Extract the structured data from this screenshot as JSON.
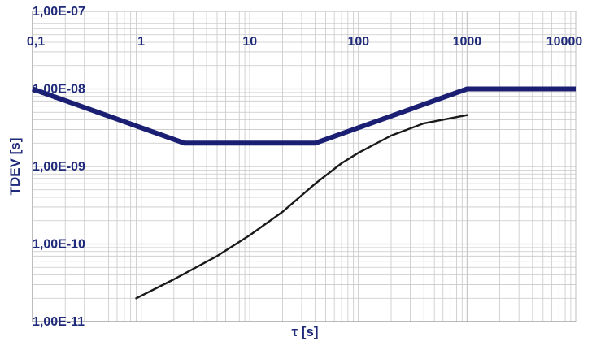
{
  "colors": {
    "background": "#ffffff",
    "grid": "#c8c8c8",
    "axis_text": "#1f2a7a",
    "mask_line": "#1b1f73",
    "measured_line": "#1a1a1a"
  },
  "chart_data": {
    "type": "line",
    "x_scale": "log",
    "y_scale": "log",
    "xlim": [
      0.1,
      10000
    ],
    "ylim": [
      1e-11,
      1e-07
    ],
    "x_ticks": [
      {
        "value": 0.1,
        "label": "0,1"
      },
      {
        "value": 1,
        "label": "1"
      },
      {
        "value": 10,
        "label": "10"
      },
      {
        "value": 100,
        "label": "100"
      },
      {
        "value": 1000,
        "label": "1000"
      },
      {
        "value": 10000,
        "label": "10000"
      }
    ],
    "y_ticks": [
      {
        "value": 1e-11,
        "label": "1,00E-11"
      },
      {
        "value": 1e-10,
        "label": "1,00E-10"
      },
      {
        "value": 1e-09,
        "label": "1,00E-09"
      },
      {
        "value": 1e-08,
        "label": "1,00E-08"
      },
      {
        "value": 1e-07,
        "label": "1,00E-07"
      }
    ],
    "xlabel": "τ [s]",
    "ylabel": "TDEV [s]",
    "x_axis_position": "top",
    "grid": true,
    "legend": "none",
    "series": [
      {
        "role": "mask",
        "color": "#1b1f73",
        "x": [
          0.1,
          2.5,
          40,
          1000,
          10000
        ],
        "y": [
          1e-08,
          2e-09,
          2e-09,
          1e-08,
          1e-08
        ]
      },
      {
        "role": "measurement",
        "color": "#1a1a1a",
        "x": [
          0.9,
          2,
          5,
          10,
          20,
          40,
          70,
          100,
          200,
          400,
          1000
        ],
        "y": [
          2e-11,
          3.5e-11,
          7e-11,
          1.3e-10,
          2.6e-10,
          6e-10,
          1.1e-09,
          1.5e-09,
          2.5e-09,
          3.6e-09,
          4.6e-09
        ]
      }
    ]
  }
}
